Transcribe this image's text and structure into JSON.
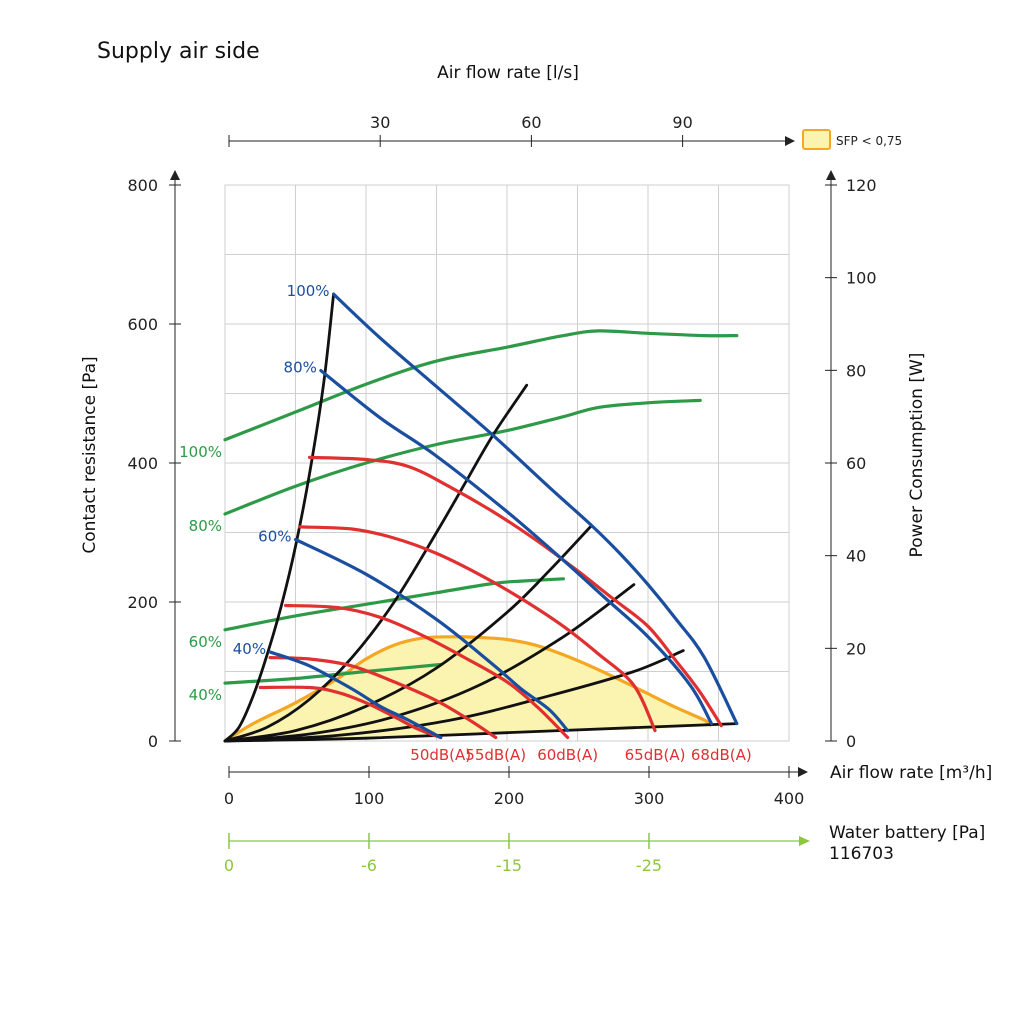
{
  "chart_data": {
    "type": "line",
    "title": "Supply air side",
    "x_axis": {
      "label": "Air flow rate [m³/h]",
      "range": [
        0,
        400
      ],
      "ticks": [
        0,
        100,
        200,
        300,
        400
      ]
    },
    "top_axis": {
      "label": "Air flow rate [l/s]",
      "ticks": [
        30,
        60,
        90
      ]
    },
    "y_left_axis": {
      "label": "Contact resistance [Pa]",
      "range": [
        0,
        800
      ],
      "ticks": [
        0,
        200,
        400,
        600,
        800
      ]
    },
    "y_right_axis": {
      "label": "Power Consumption [W]",
      "range": [
        0,
        120
      ],
      "ticks": [
        0,
        20,
        40,
        60,
        80,
        100,
        120
      ]
    },
    "water_axis": {
      "label": "Water battery [Pa]",
      "sublabel": "116703",
      "ticks": [
        {
          "flow": 0,
          "label": "0"
        },
        {
          "flow": 100,
          "label": "-6"
        },
        {
          "flow": 200,
          "label": "-15"
        },
        {
          "flow": 300,
          "label": "-25"
        }
      ],
      "color": "#8cc63f"
    },
    "legend": {
      "label": "SFP < 0,75",
      "fill": "#fbf3b0",
      "stroke": "#f5a623",
      "placement": "top-right"
    },
    "grid": true,
    "sfp_area": {
      "x": [
        0,
        20,
        50,
        80,
        100,
        120,
        140,
        160,
        180,
        200,
        220,
        240,
        260,
        280,
        300,
        320,
        340,
        345,
        365,
        300,
        200,
        100,
        50,
        0
      ],
      "y": [
        0,
        25,
        55,
        90,
        118,
        138,
        148,
        150,
        149,
        146,
        138,
        124,
        107,
        88,
        68,
        48,
        30,
        22,
        23,
        17,
        12,
        6,
        3,
        0
      ]
    },
    "fan_curves": [
      {
        "name": "100%",
        "x": [
          77,
          110,
          150,
          190,
          230,
          260,
          280,
          300,
          320,
          340,
          363
        ],
        "y": [
          643,
          580,
          510,
          440,
          365,
          310,
          270,
          225,
          175,
          120,
          25
        ],
        "color": "#1a4fa0"
      },
      {
        "name": "80%",
        "x": [
          68,
          110,
          150,
          200,
          240,
          270,
          300,
          330,
          345
        ],
        "y": [
          533,
          465,
          410,
          330,
          260,
          205,
          150,
          80,
          25
        ],
        "color": "#1a4fa0"
      },
      {
        "name": "60%",
        "x": [
          50,
          100,
          150,
          190,
          210,
          230,
          243
        ],
        "y": [
          290,
          240,
          175,
          110,
          75,
          45,
          15
        ],
        "color": "#1a4fa0"
      },
      {
        "name": "40%",
        "x": [
          32,
          60,
          90,
          110,
          130,
          153
        ],
        "y": [
          128,
          108,
          75,
          50,
          30,
          5
        ],
        "color": "#1a4fa0"
      }
    ],
    "green_power_curves": [
      {
        "name": "100%",
        "x": [
          0,
          50,
          100,
          150,
          200,
          240,
          265,
          300,
          340,
          363
        ],
        "y": [
          65,
          71,
          77,
          82,
          85,
          87.5,
          88.5,
          88,
          87.5,
          87.5
        ],
        "color": "#2e9a48"
      },
      {
        "name": "80%",
        "x": [
          0,
          50,
          100,
          150,
          200,
          240,
          265,
          300,
          337
        ],
        "y": [
          49,
          55,
          60,
          64,
          67,
          70,
          72,
          73,
          73.5
        ],
        "color": "#2e9a48"
      },
      {
        "name": "60%",
        "x": [
          0,
          50,
          100,
          150,
          190,
          210,
          240
        ],
        "y": [
          24,
          27,
          29.5,
          32,
          34,
          34.5,
          35
        ],
        "color": "#2e9a48"
      },
      {
        "name": "40%",
        "x": [
          0,
          50,
          100,
          153
        ],
        "y": [
          12.5,
          13.5,
          15,
          16.5
        ],
        "color": "#2e9a48"
      }
    ],
    "sound_curves": [
      {
        "name": "50dB(A)",
        "x": [
          25,
          60,
          80,
          100,
          120,
          137,
          153
        ],
        "y": [
          77,
          77,
          70,
          55,
          35,
          17,
          5
        ],
        "color": "#e03030"
      },
      {
        "name": "55dB(A)",
        "x": [
          32,
          60,
          90,
          120,
          150,
          175,
          192
        ],
        "y": [
          120,
          118,
          108,
          85,
          58,
          28,
          5
        ],
        "color": "#e03030"
      },
      {
        "name": "60dB(A)",
        "x": [
          43,
          80,
          110,
          140,
          170,
          200,
          222,
          243
        ],
        "y": [
          195,
          192,
          178,
          152,
          120,
          85,
          48,
          5
        ],
        "color": "#e03030"
      },
      {
        "name": "65dB(A)",
        "x": [
          53,
          90,
          120,
          150,
          180,
          210,
          240,
          265,
          290,
          305
        ],
        "y": [
          308,
          305,
          292,
          270,
          240,
          205,
          165,
          125,
          80,
          15
        ],
        "color": "#e03030"
      },
      {
        "name": "68dB(A)",
        "x": [
          60,
          100,
          130,
          160,
          190,
          220,
          250,
          275,
          300,
          320,
          337,
          352
        ],
        "y": [
          408,
          405,
          395,
          365,
          330,
          290,
          245,
          205,
          165,
          115,
          70,
          22
        ],
        "color": "#e03030"
      }
    ],
    "system_curves": [
      {
        "x": [
          0,
          10,
          20,
          30,
          40,
          50,
          60,
          70,
          77
        ],
        "y": [
          0,
          20,
          65,
          125,
          195,
          280,
          385,
          515,
          643
        ]
      },
      {
        "x": [
          0,
          30,
          60,
          90,
          120,
          150,
          170,
          190,
          214
        ],
        "y": [
          0,
          20,
          60,
          120,
          200,
          300,
          370,
          440,
          512
        ]
      },
      {
        "x": [
          0,
          50,
          100,
          150,
          200,
          230,
          260
        ],
        "y": [
          0,
          15,
          50,
          105,
          185,
          245,
          310
        ]
      },
      {
        "x": [
          0,
          60,
          120,
          180,
          240,
          290
        ],
        "y": [
          0,
          10,
          35,
          80,
          150,
          225
        ]
      },
      {
        "x": [
          0,
          80,
          160,
          230,
          290,
          325
        ],
        "y": [
          0,
          8,
          30,
          65,
          100,
          130
        ]
      },
      {
        "x": [
          0,
          100,
          200,
          300,
          363
        ],
        "y": [
          0,
          4,
          12,
          20,
          25
        ]
      }
    ]
  }
}
